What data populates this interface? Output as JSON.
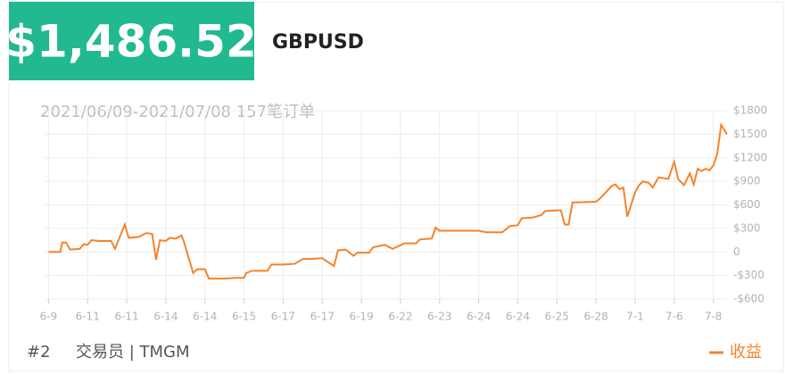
{
  "header": {
    "balance": "$1,486.52",
    "symbol": "GBPUSD"
  },
  "footer": {
    "rank": "#2",
    "trader": "交易员 | TMGM"
  },
  "chart_data": {
    "type": "line",
    "subtitle": "2021/06/09-2021/07/08 157笔订单",
    "x": [
      0,
      0.3,
      0.35,
      0.45,
      0.55,
      0.8,
      0.9,
      1.0,
      1.1,
      1.3,
      1.6,
      1.7,
      1.95,
      2.05,
      2.3,
      2.5,
      2.65,
      2.75,
      2.85,
      3.0,
      3.1,
      3.25,
      3.4,
      3.45,
      3.7,
      3.8,
      4.0,
      4.1,
      4.5,
      4.8,
      5.0,
      5.05,
      5.2,
      5.6,
      5.7,
      6.0,
      6.3,
      6.5,
      6.7,
      7.0,
      7.3,
      7.4,
      7.6,
      7.8,
      7.9,
      8.2,
      8.3,
      8.6,
      8.8,
      9.1,
      9.4,
      9.5,
      9.8,
      9.9,
      10.0,
      10.5,
      11.0,
      11.2,
      11.6,
      11.8,
      12.0,
      12.1,
      12.4,
      12.6,
      12.7,
      13.0,
      13.1,
      13.2,
      13.3,
      13.4,
      14.0,
      14.1,
      14.25,
      14.4,
      14.5,
      14.6,
      14.7,
      14.8,
      15.0,
      15.1,
      15.2,
      15.35,
      15.45,
      15.6,
      15.85,
      16.0,
      16.1,
      16.25,
      16.4,
      16.5,
      16.6,
      16.7,
      16.8,
      16.9,
      17.0,
      17.1,
      17.2,
      17.35
    ],
    "series": [
      {
        "name": "收益",
        "color": "#f5832a",
        "values": [
          0,
          0,
          120,
          120,
          30,
          40,
          100,
          90,
          150,
          140,
          140,
          40,
          350,
          180,
          190,
          240,
          230,
          -100,
          150,
          140,
          180,
          170,
          210,
          150,
          -270,
          -220,
          -220,
          -340,
          -340,
          -330,
          -330,
          -270,
          -240,
          -240,
          -160,
          -160,
          -150,
          -90,
          -90,
          -80,
          -180,
          20,
          30,
          -50,
          -10,
          -10,
          60,
          90,
          40,
          110,
          110,
          160,
          170,
          310,
          270,
          270,
          270,
          250,
          250,
          330,
          340,
          430,
          440,
          470,
          520,
          530,
          530,
          350,
          350,
          630,
          640,
          680,
          760,
          840,
          860,
          800,
          820,
          450,
          760,
          850,
          900,
          880,
          820,
          950,
          930,
          1150,
          930,
          850,
          1000,
          860,
          1060,
          1030,
          1060,
          1040,
          1100,
          1250,
          1620,
          1500
        ]
      }
    ],
    "xlim": [
      -0.1,
      17.35
    ],
    "xticks": [
      {
        "value": 0,
        "label": "6-9"
      },
      {
        "value": 1,
        "label": "6-11"
      },
      {
        "value": 2,
        "label": "6-11"
      },
      {
        "value": 3,
        "label": "6-14"
      },
      {
        "value": 4,
        "label": "6-14"
      },
      {
        "value": 5,
        "label": "6-15"
      },
      {
        "value": 6,
        "label": "6-17"
      },
      {
        "value": 7,
        "label": "6-17"
      },
      {
        "value": 8,
        "label": "6-19"
      },
      {
        "value": 9,
        "label": "6-22"
      },
      {
        "value": 10,
        "label": "6-23"
      },
      {
        "value": 11,
        "label": "6-24"
      },
      {
        "value": 12,
        "label": "6-24"
      },
      {
        "value": 13,
        "label": "6-25"
      },
      {
        "value": 14,
        "label": "6-28"
      },
      {
        "value": 15,
        "label": "7-1"
      },
      {
        "value": 16,
        "label": "7-6"
      },
      {
        "value": 17,
        "label": "7-8"
      }
    ],
    "ylim": [
      -600,
      1800
    ],
    "yticks": [
      {
        "value": 1800,
        "label": "$1800"
      },
      {
        "value": 1500,
        "label": "$1500"
      },
      {
        "value": 1200,
        "label": "$1200"
      },
      {
        "value": 900,
        "label": "$900"
      },
      {
        "value": 600,
        "label": "$600"
      },
      {
        "value": 300,
        "label": "$300"
      },
      0,
      {
        "value": -300,
        "label": "-$300"
      },
      {
        "value": -600,
        "label": "-$600"
      }
    ],
    "grid": true
  }
}
